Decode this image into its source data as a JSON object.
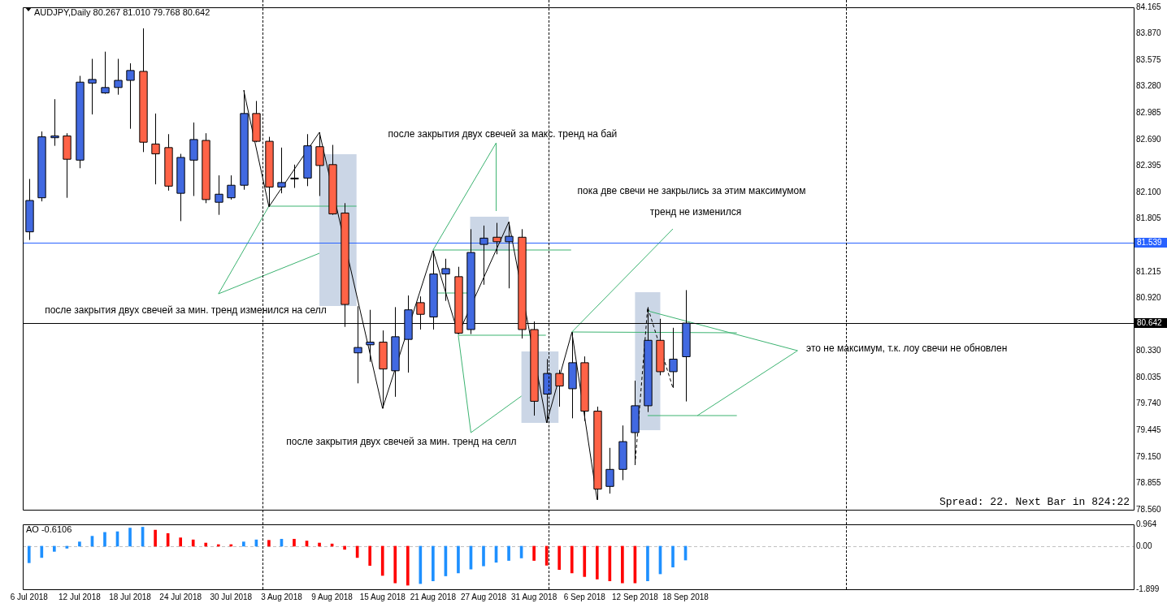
{
  "chart_data": [
    {
      "type": "candlestick",
      "title": "AUDJPY,Daily 80.267 81.010 79.768 80.642",
      "tick_labels": "y",
      "marker": "none",
      "categories": [
        null,
        null,
        null,
        null,
        null,
        null,
        null,
        null,
        null,
        null,
        null,
        null,
        null,
        null,
        null,
        null,
        null,
        null,
        null,
        null,
        null,
        null,
        null,
        null,
        null,
        null,
        null,
        null,
        null,
        null,
        null,
        null,
        null,
        null,
        null,
        null,
        null,
        null,
        null,
        null,
        null,
        null,
        null,
        null,
        null,
        null,
        null,
        null,
        null,
        null,
        null,
        null,
        null,
        null,
        null,
        null,
        null,
        null,
        null,
        null,
        null,
        null,
        null,
        null,
        null,
        null,
        null,
        null,
        null,
        null,
        null,
        null,
        null,
        null,
        null,
        null,
        null,
        null,
        null,
        null,
        null,
        null,
        null,
        null,
        null,
        null,
        null,
        null
      ],
      "ohlc": [
        [
          81.66,
          82.25,
          81.57,
          82.01
        ],
        [
          82.04,
          82.78,
          82.0,
          82.72
        ],
        [
          82.71,
          83.14,
          82.62,
          82.73
        ],
        [
          82.73,
          82.76,
          82.04,
          82.47
        ],
        [
          82.46,
          83.4,
          82.37,
          83.33
        ],
        [
          83.32,
          83.59,
          82.97,
          83.36
        ],
        [
          83.21,
          83.67,
          83.2,
          83.27
        ],
        [
          83.27,
          83.59,
          83.19,
          83.35
        ],
        [
          83.35,
          83.54,
          82.81,
          83.46
        ],
        [
          83.45,
          83.93,
          82.55,
          82.66
        ],
        [
          82.64,
          82.98,
          82.19,
          82.53
        ],
        [
          82.6,
          82.75,
          82.12,
          82.17
        ],
        [
          82.09,
          82.53,
          81.78,
          82.49
        ],
        [
          82.46,
          82.88,
          82.06,
          82.69
        ],
        [
          82.68,
          82.76,
          81.98,
          82.02
        ],
        [
          81.99,
          82.29,
          81.85,
          82.08
        ],
        [
          82.04,
          82.29,
          82.02,
          82.18
        ],
        [
          82.18,
          83.24,
          82.13,
          82.98
        ],
        [
          82.98,
          83.12,
          82.66,
          82.67
        ],
        [
          82.67,
          82.72,
          81.94,
          82.16
        ],
        [
          82.16,
          82.6,
          82.09,
          82.21
        ],
        [
          82.25,
          82.41,
          82.15,
          82.26
        ],
        [
          82.26,
          82.75,
          82.17,
          82.62
        ],
        [
          82.61,
          82.77,
          82.06,
          82.4
        ],
        [
          82.41,
          82.63,
          81.85,
          81.86
        ],
        [
          81.87,
          81.98,
          80.6,
          80.85
        ],
        [
          80.31,
          80.83,
          79.97,
          80.37
        ],
        [
          80.4,
          80.79,
          80.21,
          80.43
        ],
        [
          80.43,
          80.56,
          79.69,
          80.13
        ],
        [
          80.11,
          80.82,
          79.82,
          80.49
        ],
        [
          80.46,
          80.95,
          80.09,
          80.79
        ],
        [
          80.87,
          80.94,
          80.57,
          80.74
        ],
        [
          80.71,
          81.45,
          80.57,
          81.19
        ],
        [
          81.19,
          81.36,
          80.89,
          81.25
        ],
        [
          81.16,
          81.27,
          80.52,
          80.53
        ],
        [
          80.57,
          81.69,
          80.52,
          81.43
        ],
        [
          81.52,
          81.73,
          81.07,
          81.59
        ],
        [
          81.6,
          81.76,
          81.41,
          81.55
        ],
        [
          81.55,
          81.77,
          81.03,
          81.61
        ],
        [
          81.6,
          81.69,
          80.47,
          80.57
        ],
        [
          80.57,
          80.66,
          79.61,
          79.77
        ],
        [
          79.85,
          80.24,
          79.53,
          80.08
        ],
        [
          80.08,
          80.12,
          79.71,
          79.94
        ],
        [
          79.91,
          80.54,
          79.58,
          80.2
        ],
        [
          80.2,
          80.27,
          79.55,
          79.66
        ],
        [
          79.66,
          79.71,
          78.67,
          78.79
        ],
        [
          78.82,
          79.25,
          78.74,
          79.01
        ],
        [
          79.01,
          79.5,
          78.89,
          79.32
        ],
        [
          79.42,
          80.0,
          79.06,
          79.72
        ],
        [
          79.72,
          80.82,
          79.65,
          80.45
        ],
        [
          80.45,
          80.69,
          80.06,
          80.1
        ],
        [
          80.1,
          80.59,
          79.92,
          80.24
        ],
        [
          80.267,
          81.01,
          79.768,
          80.642
        ],
        null,
        null,
        null,
        null,
        null,
        null,
        null,
        null,
        null,
        null,
        null,
        null,
        null,
        null,
        null,
        null,
        null,
        null,
        null,
        null,
        null,
        null,
        null,
        null,
        null,
        null,
        null,
        null,
        null,
        null,
        null,
        null,
        null,
        null,
        null
      ],
      "colors": [
        "#4169e1",
        "#4169e1",
        "#4169e1",
        "#ff6347",
        "#4169e1",
        "#4169e1",
        "#4169e1",
        "#4169e1",
        "#4169e1",
        "#ff6347",
        "#ff6347",
        "#ff6347",
        "#4169e1",
        "#4169e1",
        "#ff6347",
        "#4169e1",
        "#4169e1",
        "#4169e1",
        "#ff6347",
        "#ff6347",
        "#4169e1",
        "#4169e1",
        "#4169e1",
        "#ff6347",
        "#ff6347",
        "#ff6347",
        "#4169e1",
        "#4169e1",
        "#ff6347",
        "#4169e1",
        "#4169e1",
        "#ff6347",
        "#4169e1",
        "#4169e1",
        "#ff6347",
        "#4169e1",
        "#4169e1",
        "#ff6347",
        "#4169e1",
        "#ff6347",
        "#ff6347",
        "#4169e1",
        "#ff6347",
        "#4169e1",
        "#ff6347",
        "#ff6347",
        "#4169e1",
        "#4169e1",
        "#4169e1",
        "#4169e1",
        "#ff6347",
        "#4169e1",
        "#4169e1",
        null,
        null,
        null,
        null,
        null,
        null,
        null,
        null,
        null,
        null,
        null,
        null,
        null,
        null,
        null,
        null,
        null,
        null,
        null,
        null,
        null,
        null,
        null,
        null,
        null,
        null,
        null,
        null,
        null,
        null,
        null,
        null,
        null,
        null,
        null
      ],
      "series": [
        {
          "type": "line",
          "color": "#000000",
          "line_style": "solid",
          "values": [
            null,
            null,
            null,
            null,
            null,
            null,
            null,
            null,
            null,
            null,
            null,
            null,
            null,
            null,
            null,
            null,
            null,
            83.24,
            null,
            81.94,
            null,
            null,
            null,
            82.77,
            null,
            null,
            null,
            null,
            79.69,
            null,
            null,
            null,
            81.45,
            null,
            80.52,
            null,
            null,
            null,
            81.77,
            null,
            null,
            79.53,
            null,
            80.54,
            null,
            78.67,
            null,
            null,
            null,
            null,
            null,
            null,
            null,
            null,
            null,
            null,
            null,
            null,
            null,
            null,
            null,
            null,
            null,
            null,
            null,
            null,
            null,
            null,
            null,
            null,
            null,
            null,
            null,
            null,
            null,
            null,
            null,
            null,
            null,
            null,
            null,
            null,
            null,
            null,
            null,
            null,
            null,
            null
          ]
        },
        {
          "type": "line",
          "color": "#000000",
          "line_style": "dashed",
          "values": [
            null,
            null,
            null,
            null,
            null,
            null,
            null,
            null,
            null,
            null,
            null,
            null,
            null,
            null,
            null,
            null,
            null,
            null,
            null,
            null,
            null,
            null,
            null,
            null,
            null,
            null,
            null,
            null,
            null,
            null,
            null,
            null,
            null,
            null,
            null,
            null,
            null,
            null,
            null,
            null,
            null,
            null,
            null,
            null,
            null,
            null,
            null,
            null,
            79.06,
            80.82,
            null,
            79.92,
            null,
            null,
            null,
            null,
            null,
            null,
            null,
            null,
            null,
            null,
            null,
            null,
            null,
            null,
            null,
            null,
            null,
            null,
            null,
            null,
            null,
            null,
            null,
            null,
            null,
            null,
            null,
            null,
            null,
            null,
            null,
            null,
            null,
            null,
            null,
            null
          ]
        }
      ],
      "ylim": [
        78.56,
        84.165
      ],
      "yticks": [
        {
          "value": 84.165,
          "label": "84.165"
        },
        {
          "value": 83.87,
          "label": "83.870"
        },
        {
          "value": 83.575,
          "label": "83.575"
        },
        {
          "value": 83.28,
          "label": "83.280"
        },
        {
          "value": 82.985,
          "label": "82.985"
        },
        {
          "value": 82.69,
          "label": "82.690"
        },
        {
          "value": 82.395,
          "label": "82.395"
        },
        {
          "value": 82.1,
          "label": "82.100"
        },
        {
          "value": 81.805,
          "label": "81.805"
        },
        {
          "value": 81.215,
          "label": "81.215"
        },
        {
          "value": 80.92,
          "label": "80.920"
        },
        {
          "value": 80.33,
          "label": "80.330"
        },
        {
          "value": 80.035,
          "label": "80.035"
        },
        {
          "value": 79.74,
          "label": "79.740"
        },
        {
          "value": 79.445,
          "label": "79.445"
        },
        {
          "value": 79.15,
          "label": "79.150"
        },
        {
          "value": 78.855,
          "label": "78.855"
        },
        {
          "value": 78.56,
          "label": "78.560"
        }
      ],
      "ref_lines": [
        {
          "axis": "y",
          "value": 81.539,
          "label": "81.539",
          "color": "#2962ff"
        },
        {
          "axis": "y",
          "value": 80.642,
          "label": "80.642",
          "color": "#000000"
        }
      ],
      "annotations": [
        "после закрытия двух свечей за макс. тренд на бай",
        "пока две свечи не закрылись за этим максимумом",
        "тренд не изменился",
        "после закрытия двух свечей за мин. тренд изменился на селл",
        "это не максимум, т.к. лоу свечи не обновлен",
        "после закрытия двух свечей за мин. тренд на селл",
        "Spread: 22. Next Bar in 824:22"
      ]
    },
    {
      "type": "bar",
      "title": "AO -0.6106",
      "categories": [
        "6 Jul 2018",
        null,
        null,
        null,
        "12 Jul 2018",
        null,
        null,
        null,
        "18 Jul 2018",
        null,
        null,
        null,
        "24 Jul 2018",
        null,
        null,
        null,
        "30 Jul 2018",
        null,
        null,
        null,
        "3 Aug 2018",
        null,
        null,
        null,
        "9 Aug 2018",
        null,
        null,
        null,
        "15 Aug 2018",
        null,
        null,
        null,
        "21 Aug 2018",
        null,
        null,
        null,
        "27 Aug 2018",
        null,
        null,
        null,
        "31 Aug 2018",
        null,
        null,
        null,
        "6 Sep 2018",
        null,
        null,
        null,
        "12 Sep 2018",
        null,
        null,
        null,
        "18 Sep 2018",
        null,
        null,
        null,
        null,
        null,
        null,
        null,
        null,
        null,
        null,
        null,
        null,
        null,
        null,
        null,
        null,
        null,
        null,
        null,
        null,
        null,
        null,
        null,
        null,
        null,
        null,
        null,
        null,
        null,
        null,
        null,
        null,
        null,
        null,
        null
      ],
      "values": [
        -0.73,
        -0.5,
        -0.23,
        -0.09,
        0.19,
        0.44,
        0.61,
        0.64,
        0.8,
        0.84,
        0.71,
        0.56,
        0.37,
        0.28,
        0.14,
        0.07,
        0.07,
        0.19,
        0.28,
        0.26,
        0.31,
        0.31,
        0.23,
        0.14,
        0.1,
        -0.14,
        -0.5,
        -0.85,
        -1.29,
        -1.62,
        -1.72,
        -1.65,
        -1.53,
        -1.31,
        -1.18,
        -1.01,
        -0.87,
        -0.71,
        -0.63,
        -0.52,
        -0.63,
        -0.84,
        -1.03,
        -1.18,
        -1.34,
        -1.45,
        -1.53,
        -1.62,
        -1.62,
        -1.53,
        -1.22,
        -0.92,
        -0.6106,
        null,
        null,
        null,
        null,
        null,
        null,
        null,
        null,
        null,
        null,
        null,
        null,
        null,
        null,
        null,
        null,
        null,
        null,
        null,
        null,
        null,
        null,
        null,
        null,
        null,
        null,
        null,
        null,
        null,
        null,
        null,
        null,
        null,
        null,
        null
      ],
      "colors": [
        "#1e90ff",
        "#1e90ff",
        "#1e90ff",
        "#1e90ff",
        "#1e90ff",
        "#1e90ff",
        "#1e90ff",
        "#1e90ff",
        "#1e90ff",
        "#1e90ff",
        "#ff0000",
        "#ff0000",
        "#ff0000",
        "#ff0000",
        "#ff0000",
        "#ff0000",
        "#ff0000",
        "#1e90ff",
        "#1e90ff",
        "#ff0000",
        "#1e90ff",
        "#ff0000",
        "#ff0000",
        "#ff0000",
        "#ff0000",
        "#ff0000",
        "#ff0000",
        "#ff0000",
        "#ff0000",
        "#ff0000",
        "#ff0000",
        "#1e90ff",
        "#1e90ff",
        "#1e90ff",
        "#1e90ff",
        "#1e90ff",
        "#1e90ff",
        "#1e90ff",
        "#1e90ff",
        "#1e90ff",
        "#ff0000",
        "#ff0000",
        "#ff0000",
        "#ff0000",
        "#ff0000",
        "#ff0000",
        "#ff0000",
        "#ff0000",
        "#ff0000",
        "#1e90ff",
        "#1e90ff",
        "#1e90ff",
        "#1e90ff",
        null,
        null,
        null,
        null,
        null,
        null,
        null,
        null,
        null,
        null,
        null,
        null,
        null,
        null,
        null,
        null,
        null,
        null,
        null,
        null,
        null,
        null,
        null,
        null,
        null,
        null,
        null,
        null,
        null,
        null,
        null,
        null,
        null,
        null,
        null
      ],
      "ylim": [
        -1.899,
        0.964
      ],
      "yticks": [
        {
          "value": 0.964,
          "label": "0.964"
        },
        {
          "value": 0,
          "label": "0.00"
        },
        {
          "value": -1.899,
          "label": "-1.899"
        }
      ],
      "ref_lines": [
        {
          "axis": "y",
          "value": 0,
          "color": "#c0c0c0",
          "line_style": "dashed"
        }
      ]
    }
  ]
}
